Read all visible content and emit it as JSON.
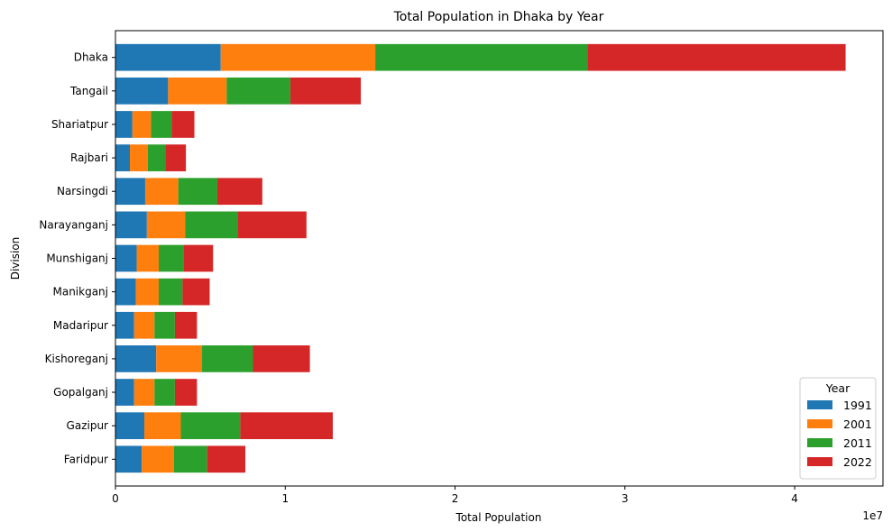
{
  "chart_data": {
    "type": "bar",
    "orientation": "horizontal",
    "stacked": true,
    "title": "Total Population in Dhaka by Year",
    "xlabel": "Total Population",
    "ylabel": "Division",
    "x_multiplier_label": "1e7",
    "xlim": [
      0,
      45200000
    ],
    "x_ticks": [
      0,
      10000000,
      20000000,
      30000000,
      40000000
    ],
    "x_tick_labels": [
      "0",
      "1",
      "2",
      "3",
      "4"
    ],
    "grid": false,
    "legend": {
      "title": "Year",
      "placement": "lower-right"
    },
    "categories": [
      "Faridpur",
      "Gazipur",
      "Gopalganj",
      "Kishoreganj",
      "Madaripur",
      "Manikganj",
      "Munshiganj",
      "Narayanganj",
      "Narsingdi",
      "Rajbari",
      "Shariatpur",
      "Tangail",
      "Dhaka"
    ],
    "series": [
      {
        "name": "1991",
        "color": "#1f77b4",
        "values": [
          1550000,
          1700000,
          1100000,
          2400000,
          1100000,
          1200000,
          1250000,
          1850000,
          1750000,
          850000,
          1000000,
          3100000,
          6200000
        ]
      },
      {
        "name": "2001",
        "color": "#ff7f0e",
        "values": [
          1900000,
          2150000,
          1200000,
          2700000,
          1200000,
          1350000,
          1300000,
          2250000,
          1950000,
          1050000,
          1100000,
          3450000,
          9100000
        ]
      },
      {
        "name": "2011",
        "color": "#2ca02c",
        "values": [
          1950000,
          3500000,
          1200000,
          3000000,
          1200000,
          1400000,
          1450000,
          3100000,
          2300000,
          1050000,
          1200000,
          3750000,
          12500000
        ]
      },
      {
        "name": "2022",
        "color": "#d62728",
        "values": [
          2250000,
          5450000,
          1300000,
          3350000,
          1300000,
          1600000,
          1750000,
          4050000,
          2650000,
          1200000,
          1350000,
          4150000,
          15200000
        ]
      }
    ]
  }
}
